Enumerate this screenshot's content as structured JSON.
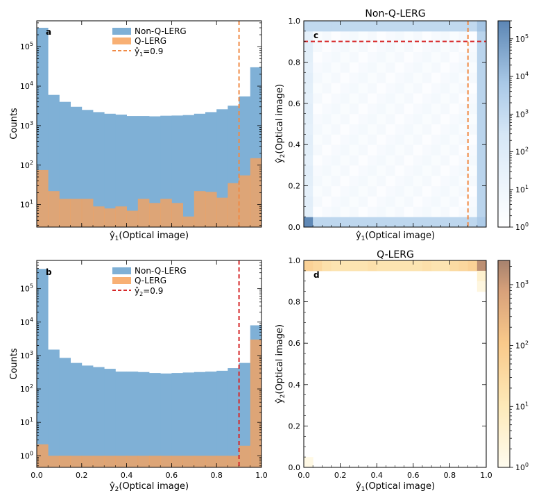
{
  "chart_data": [
    {
      "panel": "a",
      "type": "histogram",
      "title": "",
      "xlabel_hat": "ŷ",
      "xlabel_sub": "1",
      "xlabel_rest": "(Optical image)",
      "ylabel": "Counts",
      "yscale": "log",
      "xlim": [
        0,
        1
      ],
      "ylim": [
        2.7,
        450000
      ],
      "ytick_labels": [
        {
          "value": 10,
          "exp": "1"
        },
        {
          "value": 100,
          "exp": "2"
        },
        {
          "value": 1000,
          "exp": "3"
        },
        {
          "value": 10000,
          "exp": "4"
        },
        {
          "value": 100000,
          "exp": "5"
        }
      ],
      "xticks_labeled": false,
      "bin_edges": [
        0,
        0.05,
        0.1,
        0.15,
        0.2,
        0.25,
        0.3,
        0.35,
        0.4,
        0.45,
        0.5,
        0.55,
        0.6,
        0.65,
        0.7,
        0.75,
        0.8,
        0.85,
        0.9,
        0.95,
        1.0
      ],
      "series": [
        {
          "name": "Non-Q-LERG",
          "color": "#7fb0d6",
          "values": [
            300000,
            6000,
            4000,
            3000,
            2500,
            2200,
            2000,
            1900,
            1750,
            1750,
            1720,
            1780,
            1800,
            1850,
            2000,
            2200,
            2600,
            3200,
            5500,
            30000
          ]
        },
        {
          "name": "Q-LERG",
          "color": "#f7a25c",
          "values": [
            75,
            22,
            14,
            14,
            14,
            9,
            8,
            9,
            7,
            14,
            11,
            14,
            11,
            5,
            22,
            21,
            15,
            35,
            55,
            150
          ]
        }
      ],
      "threshold": {
        "name_hat": "ŷ",
        "name_sub": "1",
        "name_rest": "=0.9",
        "value": 0.9,
        "color": "#f08a45",
        "orientation": "vertical"
      },
      "annotation": "a"
    },
    {
      "panel": "b",
      "type": "histogram",
      "xlabel_hat": "ŷ",
      "xlabel_sub": "2",
      "xlabel_rest": "(Optical image)",
      "ylabel": "Counts",
      "yscale": "log",
      "xlim": [
        0,
        1
      ],
      "ylim": [
        0.45,
        700000
      ],
      "ytick_labels": [
        {
          "value": 1,
          "exp": "0"
        },
        {
          "value": 10,
          "exp": "1"
        },
        {
          "value": 100,
          "exp": "2"
        },
        {
          "value": 1000,
          "exp": "3"
        },
        {
          "value": 10000,
          "exp": "4"
        },
        {
          "value": 100000,
          "exp": "5"
        }
      ],
      "xtick_labels": [
        "0.0",
        "0.2",
        "0.4",
        "0.6",
        "0.8",
        "1.0"
      ],
      "bin_edges": [
        0,
        0.05,
        0.1,
        0.15,
        0.2,
        0.25,
        0.3,
        0.35,
        0.4,
        0.45,
        0.5,
        0.55,
        0.6,
        0.65,
        0.7,
        0.75,
        0.8,
        0.85,
        0.9,
        0.95,
        1.0
      ],
      "series": [
        {
          "name": "Non-Q-LERG",
          "color": "#7fb0d6",
          "values": [
            390000,
            1500,
            850,
            600,
            500,
            450,
            400,
            330,
            330,
            320,
            300,
            290,
            300,
            310,
            320,
            330,
            350,
            420,
            600,
            8000
          ]
        },
        {
          "name": "Q-LERG",
          "color": "#f7a25c",
          "values": [
            2.2,
            1,
            1,
            1,
            1,
            1,
            1,
            1,
            1,
            1,
            1,
            1,
            1,
            1,
            1,
            1,
            1,
            1,
            2,
            3000
          ]
        }
      ],
      "threshold": {
        "name_hat": "ŷ",
        "name_sub": "2",
        "name_rest": "=0.9",
        "value": 0.9,
        "color": "#d62728",
        "orientation": "vertical"
      },
      "annotation": "b"
    },
    {
      "panel": "c",
      "type": "heatmap",
      "title": "Non-Q-LERG",
      "xlabel_hat": "ŷ",
      "xlabel_sub": "1",
      "xlabel_rest": "(Optical image)",
      "ylabel_hat": "ŷ",
      "ylabel_sub": "2",
      "ylabel_rest": "(Optical image)",
      "xlim": [
        0,
        1
      ],
      "ylim": [
        0,
        1
      ],
      "ytick_labels": [
        "0.0",
        "0.2",
        "0.4",
        "0.6",
        "0.8",
        "1.0"
      ],
      "xticks_labeled": false,
      "colormap": "Blues-light",
      "colorbar": {
        "scale": "log",
        "range": [
          1,
          300000
        ],
        "tick_exps": [
          "0",
          "1",
          "2",
          "3",
          "4",
          "5"
        ]
      },
      "grid_bins": 20,
      "cells": {
        "base": 1.5,
        "bottom_row": 1500,
        "top_row": 1200,
        "left_col": 40,
        "right_col": 2000,
        "corner_bottom_left": 250000,
        "corner_top_right": 8000,
        "corner_bottom_right": 5000
      },
      "lines": [
        {
          "orientation": "vertical",
          "value": 0.9,
          "color": "#f08a45"
        },
        {
          "orientation": "horizontal",
          "value": 0.9,
          "color": "#d62728"
        }
      ],
      "annotation": "c"
    },
    {
      "panel": "d",
      "type": "heatmap",
      "title": "Q-LERG",
      "xlabel_hat": "ŷ",
      "xlabel_sub": "1",
      "xlabel_rest": "(Optical image)",
      "ylabel_hat": "ŷ",
      "ylabel_sub": "2",
      "ylabel_rest": "(Optical image)",
      "xlim": [
        0,
        1
      ],
      "ylim": [
        0,
        1
      ],
      "xtick_labels": [
        "0.0",
        "0.2",
        "0.4",
        "0.6",
        "0.8",
        "1.0"
      ],
      "ytick_labels": [
        "0.0",
        "0.2",
        "0.4",
        "0.6",
        "0.8",
        "1.0"
      ],
      "colormap": "Oranges-light",
      "colorbar": {
        "scale": "log",
        "range": [
          1,
          2500
        ],
        "tick_exps": [
          "0",
          "1",
          "2",
          "3"
        ]
      },
      "grid_bins": 20,
      "top_row_values": [
        60,
        40,
        20,
        15,
        15,
        15,
        15,
        20,
        15,
        15,
        15,
        15,
        15,
        20,
        15,
        15,
        30,
        40,
        60,
        1500
      ],
      "extra_cells": [
        {
          "col": 19,
          "row": 18,
          "value": 4
        },
        {
          "col": 19,
          "row": 17,
          "value": 2
        },
        {
          "col": 0,
          "row": 0,
          "value": 1.5
        }
      ],
      "annotation": "d"
    }
  ]
}
